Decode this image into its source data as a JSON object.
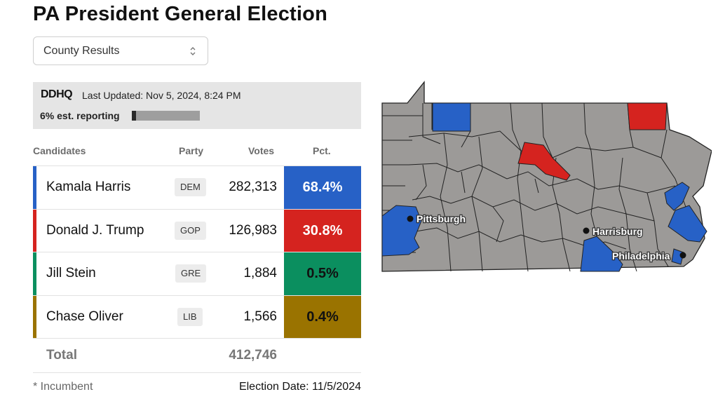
{
  "title": "PA President General Election",
  "dropdown": {
    "selected": "County Results"
  },
  "status": {
    "logo": "DDHQ",
    "last_updated": "Last Updated: Nov 5, 2024, 8:24 PM",
    "reporting_label": "6% est. reporting",
    "reporting_percent": 6
  },
  "table": {
    "headers": {
      "candidates": "Candidates",
      "party": "Party",
      "votes": "Votes",
      "pct": "Pct."
    },
    "rows": [
      {
        "name": "Kamala Harris",
        "party": "DEM",
        "votes": "282,313",
        "pct": "68.4%",
        "color": "#2761c6",
        "pct_text_color": "#ffffff"
      },
      {
        "name": "Donald J. Trump",
        "party": "GOP",
        "votes": "126,983",
        "pct": "30.8%",
        "color": "#d5231f",
        "pct_text_color": "#ffffff"
      },
      {
        "name": "Jill Stein",
        "party": "GRE",
        "votes": "1,884",
        "pct": "0.5%",
        "color": "#0b8f5f",
        "pct_text_color": "#111111"
      },
      {
        "name": "Chase Oliver",
        "party": "LIB",
        "votes": "1,566",
        "pct": "0.4%",
        "color": "#9a7300",
        "pct_text_color": "#111111"
      }
    ],
    "total_label": "Total",
    "total_votes": "412,746"
  },
  "footer": {
    "incumbent_note": "* Incumbent",
    "election_date": "Election Date: 11/5/2024"
  },
  "map": {
    "colors": {
      "dem": "#2761c6",
      "gop": "#d5231f",
      "none": "#9c9a98",
      "border": "#222222"
    },
    "cities": [
      "Pittsburgh",
      "Harrisburg",
      "Philadelphia"
    ]
  }
}
